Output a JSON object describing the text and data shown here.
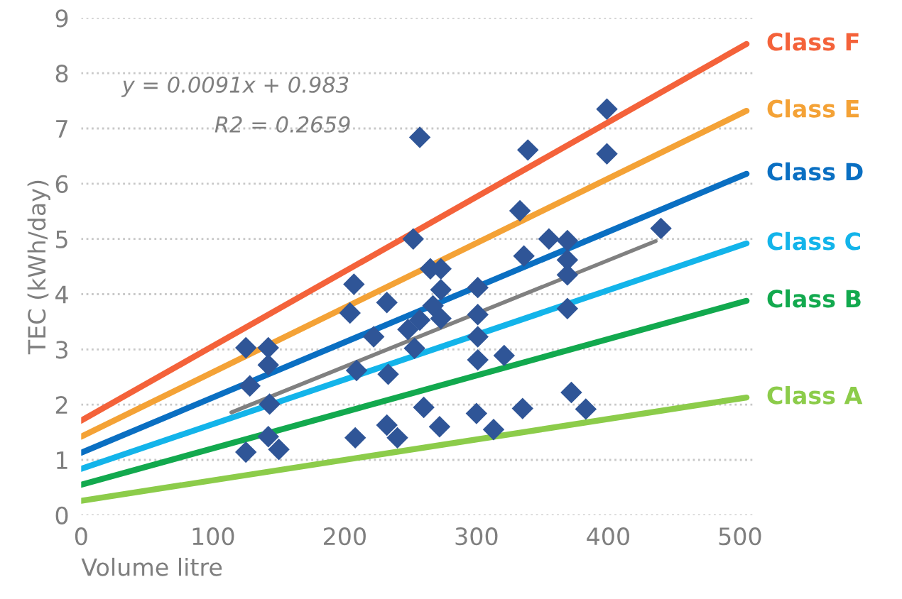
{
  "chart_data": {
    "type": "scatter",
    "xlabel": "Volume litre",
    "ylabel": "TEC (kWh/day)",
    "xlim": [
      0,
      510
    ],
    "ylim": [
      0,
      9
    ],
    "xticks": [
      0,
      100,
      200,
      300,
      400,
      500
    ],
    "yticks": [
      0,
      1,
      2,
      3,
      4,
      5,
      6,
      7,
      8,
      9
    ],
    "grid": "y",
    "legend": false,
    "annotations": [
      "y = 0.0091x + 0.983",
      "R2 = 0.2659"
    ],
    "series": [
      {
        "type": "line",
        "name": "Class F",
        "color": "#f4623a",
        "x": [
          0,
          505
        ],
        "values": [
          1.71,
          8.53
        ]
      },
      {
        "type": "line",
        "name": "Class E",
        "color": "#f4a236",
        "x": [
          0,
          505
        ],
        "values": [
          1.42,
          7.32
        ]
      },
      {
        "type": "line",
        "name": "Class D",
        "color": "#0a6fc2",
        "x": [
          0,
          505
        ],
        "values": [
          1.13,
          6.18
        ]
      },
      {
        "type": "line",
        "name": "Class C",
        "color": "#13b4ea",
        "x": [
          0,
          505
        ],
        "values": [
          0.84,
          4.92
        ]
      },
      {
        "type": "line",
        "name": "Class B",
        "color": "#12a94e",
        "x": [
          0,
          505
        ],
        "values": [
          0.55,
          3.88
        ]
      },
      {
        "type": "line",
        "name": "Class A",
        "color": "#8ccc4a",
        "x": [
          0,
          505
        ],
        "values": [
          0.26,
          2.13
        ]
      },
      {
        "type": "line",
        "color": "#808080",
        "x": [
          114,
          436
        ],
        "values": [
          1.86,
          4.96
        ]
      },
      {
        "marker": "diamond",
        "color": "#2f5597",
        "x": [
          125,
          125,
          128,
          142,
          142,
          143,
          142,
          150,
          207,
          204,
          209,
          208,
          222,
          232,
          233,
          232,
          240,
          252,
          257,
          253,
          248,
          257,
          260,
          265,
          273,
          267,
          273,
          273,
          272,
          301,
          301,
          301,
          301,
          300,
          313,
          321,
          333,
          339,
          336,
          335,
          355,
          369,
          369,
          369,
          369,
          372,
          383,
          399,
          399,
          440
        ],
        "values": [
          1.14,
          3.03,
          2.34,
          3.03,
          2.72,
          2.01,
          1.42,
          1.19,
          4.18,
          3.66,
          2.62,
          1.4,
          3.23,
          3.85,
          2.55,
          1.63,
          1.4,
          5.0,
          6.84,
          3.02,
          3.36,
          3.53,
          1.95,
          4.46,
          4.46,
          3.79,
          4.08,
          3.56,
          1.6,
          4.12,
          3.63,
          3.23,
          2.81,
          1.84,
          1.55,
          2.89,
          5.51,
          6.61,
          4.69,
          1.93,
          5.0,
          4.97,
          4.62,
          4.35,
          3.74,
          2.22,
          1.92,
          7.35,
          6.54,
          5.19
        ]
      }
    ]
  }
}
